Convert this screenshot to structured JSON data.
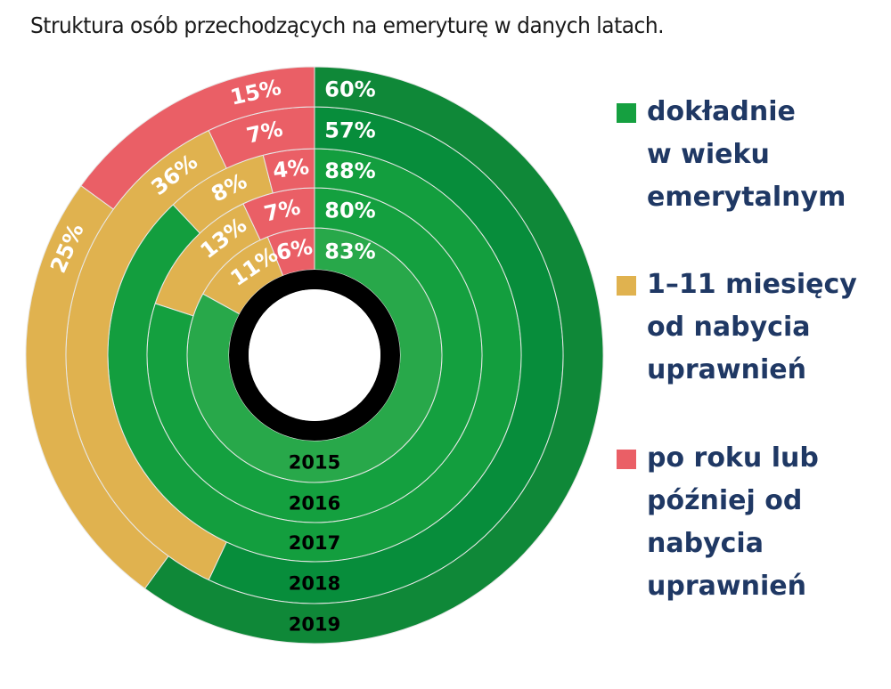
{
  "chart_data": {
    "type": "pie",
    "subtype": "multi-ring donut",
    "title": "Struktura osób przechodzących na emeryturę w danych latach.",
    "series": [
      {
        "name": "dokładnie w wieku emerytalnym",
        "color": "#15a040"
      },
      {
        "name": "1–11 miesięcy od nabycia uprawnień",
        "color": "#e0b24f"
      },
      {
        "name": "po roku lub później od nabycia uprawnień",
        "color": "#ea5f66"
      }
    ],
    "rings": [
      {
        "year": "2015",
        "values": [
          83,
          11,
          6
        ],
        "labels": [
          "83%",
          "11%",
          "6%"
        ],
        "green": "#28a84a"
      },
      {
        "year": "2016",
        "values": [
          80,
          13,
          7
        ],
        "labels": [
          "80%",
          "13%",
          "7%"
        ],
        "green": "#14a03f"
      },
      {
        "year": "2017",
        "values": [
          88,
          8,
          4
        ],
        "labels": [
          "88%",
          "8%",
          "4%"
        ],
        "green": "#139e3e"
      },
      {
        "year": "2018",
        "values": [
          57,
          36,
          7
        ],
        "labels": [
          "57%",
          "36%",
          "7%"
        ],
        "green": "#078d3b"
      },
      {
        "year": "2019",
        "values": [
          60,
          25,
          15
        ],
        "labels": [
          "60%",
          "25%",
          "15%"
        ],
        "green": "#0f8838"
      }
    ],
    "legend_position": "right"
  },
  "legend": [
    {
      "label_lines": [
        "dokładnie",
        "w wieku",
        "emerytalnym"
      ]
    },
    {
      "label_lines": [
        "1–11 miesięcy",
        "od nabycia",
        "uprawnień"
      ]
    },
    {
      "label_lines": [
        "po roku lub",
        "później od",
        "nabycia",
        "uprawnień"
      ]
    }
  ]
}
